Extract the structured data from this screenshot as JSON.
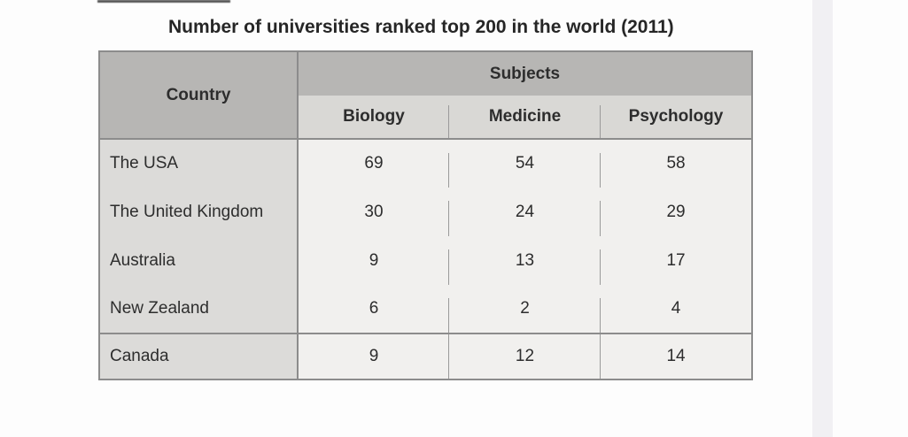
{
  "chart_data": {
    "type": "table",
    "title": "Number of universities ranked top 200 in the world (2011)",
    "corner_header": "Country",
    "group_header": "Subjects",
    "columns": [
      "Biology",
      "Medicine",
      "Psychology"
    ],
    "rows": [
      {
        "country": "The USA",
        "values": [
          69,
          54,
          58
        ]
      },
      {
        "country": "The United Kingdom",
        "values": [
          30,
          24,
          29
        ]
      },
      {
        "country": "Australia",
        "values": [
          9,
          13,
          17
        ]
      },
      {
        "country": "New Zealand",
        "values": [
          6,
          2,
          4
        ]
      },
      {
        "country": "Canada",
        "values": [
          9,
          12,
          14
        ]
      }
    ],
    "layout": {
      "grid": "header row spans; horizontal rule under header and above last row; dashed vertical dividers between subject columns"
    }
  },
  "colors": {
    "header_dark_bg": "#b7b6b4",
    "header_light_bg": "#d9d8d5",
    "row_label_bg": "#dcdbd9",
    "cell_bg": "#f1f0ee",
    "border": "#8c8c8c",
    "divider": "#9a9a9a",
    "text": "#2d2d2d",
    "right_strip": "#f1f0f3"
  }
}
